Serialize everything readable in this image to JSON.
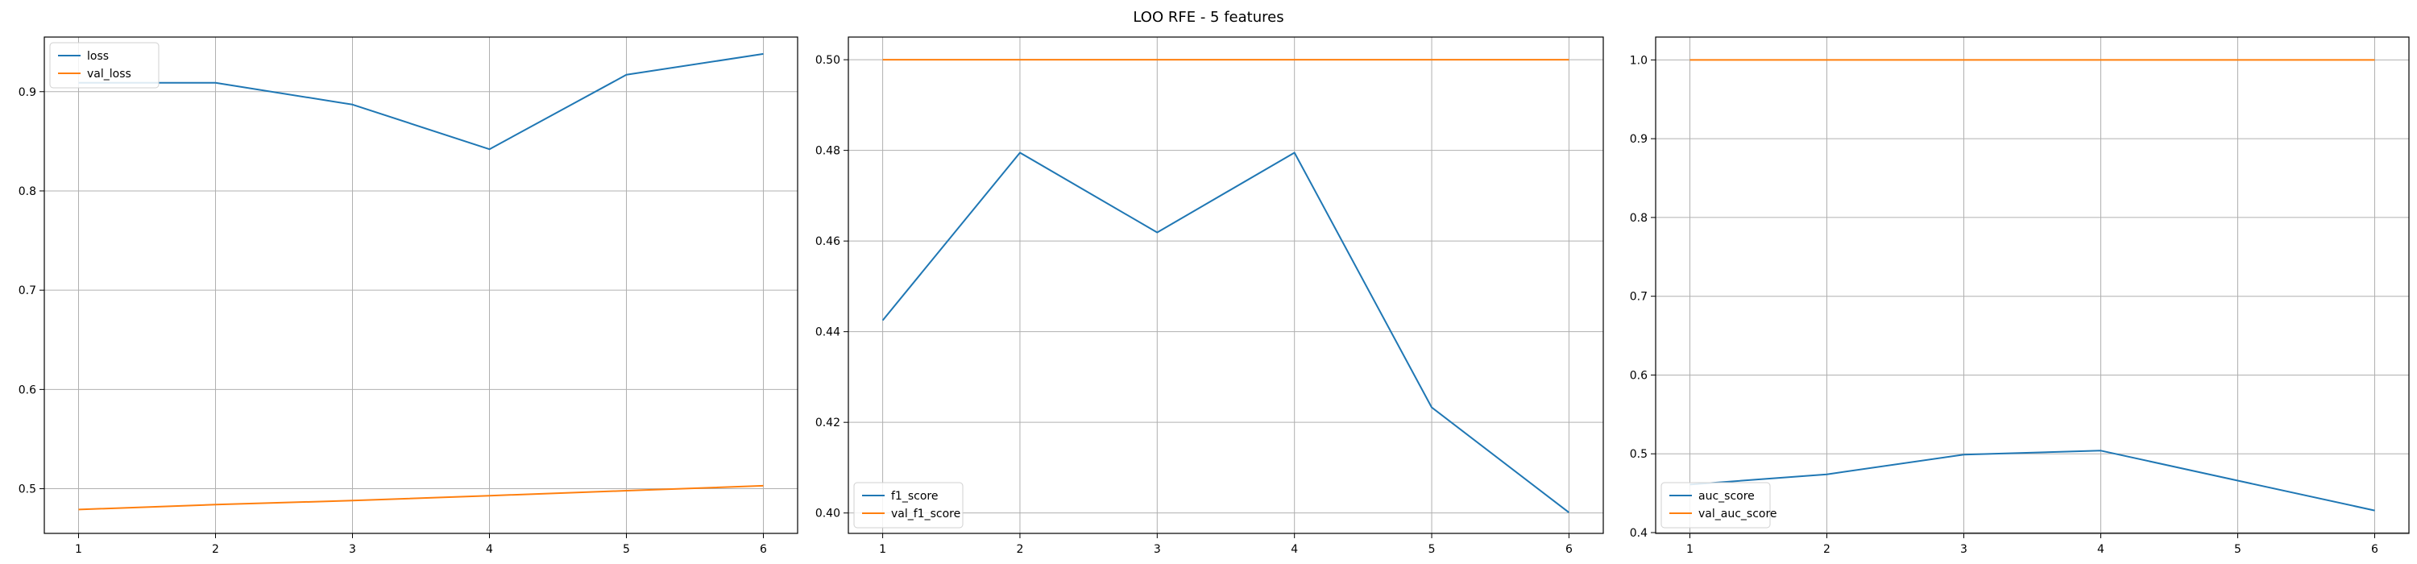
{
  "figure": {
    "title": "LOO RFE - 5 features"
  },
  "chart_data": [
    {
      "type": "line",
      "x": [
        1,
        2,
        3,
        4,
        5,
        6
      ],
      "xlim": [
        0.75,
        6.25
      ],
      "ylim": [
        0.455,
        0.955
      ],
      "yticks": [
        0.5,
        0.6,
        0.7,
        0.8,
        0.9
      ],
      "yticklabels": [
        "0.5",
        "0.6",
        "0.7",
        "0.8",
        "0.9"
      ],
      "legend_loc": "upper-left",
      "grid": true,
      "series": [
        {
          "name": "loss",
          "color": "#1f77b4",
          "values": [
            0.909,
            0.909,
            0.887,
            0.842,
            0.917,
            0.938
          ]
        },
        {
          "name": "val_loss",
          "color": "#ff7f0e",
          "values": [
            0.479,
            0.484,
            0.488,
            0.493,
            0.498,
            0.503
          ]
        }
      ]
    },
    {
      "type": "line",
      "x": [
        1,
        2,
        3,
        4,
        5,
        6
      ],
      "xlim": [
        0.75,
        6.25
      ],
      "ylim": [
        0.3955,
        0.505
      ],
      "yticks": [
        0.4,
        0.42,
        0.44,
        0.46,
        0.48,
        0.5
      ],
      "yticklabels": [
        "0.40",
        "0.42",
        "0.44",
        "0.46",
        "0.48",
        "0.50"
      ],
      "legend_loc": "lower-left",
      "grid": true,
      "series": [
        {
          "name": "f1_score",
          "color": "#1f77b4",
          "values": [
            0.4425,
            0.4795,
            0.4619,
            0.4795,
            0.4233,
            0.4001
          ]
        },
        {
          "name": "val_f1_score",
          "color": "#ff7f0e",
          "values": [
            0.5,
            0.5,
            0.5,
            0.5,
            0.5,
            0.5
          ]
        }
      ]
    },
    {
      "type": "line",
      "x": [
        1,
        2,
        3,
        4,
        5,
        6
      ],
      "xlim": [
        0.75,
        6.25
      ],
      "ylim": [
        0.399,
        1.029
      ],
      "yticks": [
        0.4,
        0.5,
        0.6,
        0.7,
        0.8,
        0.9,
        1.0
      ],
      "yticklabels": [
        "0.4",
        "0.5",
        "0.6",
        "0.7",
        "0.8",
        "0.9",
        "1.0"
      ],
      "legend_loc": "lower-left",
      "grid": true,
      "series": [
        {
          "name": "auc_score",
          "color": "#1f77b4",
          "values": [
            0.461,
            0.474,
            0.499,
            0.504,
            0.466,
            0.428
          ]
        },
        {
          "name": "val_auc_score",
          "color": "#ff7f0e",
          "values": [
            1.0,
            1.0,
            1.0,
            1.0,
            1.0,
            1.0
          ]
        }
      ]
    }
  ]
}
